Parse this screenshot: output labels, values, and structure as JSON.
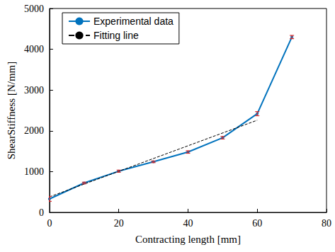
{
  "chart_data": {
    "type": "line",
    "x_label": "Contracting length [mm]",
    "y_label": "ShearStiffness [N/mm]",
    "xlim": [
      0,
      80
    ],
    "xticks": [
      0,
      20,
      40,
      60,
      80
    ],
    "ylim": [
      0,
      5000
    ],
    "yticks": [
      0,
      1000,
      2000,
      3000,
      4000,
      5000
    ],
    "grid": false,
    "legend": "upper left",
    "series": [
      {
        "name": "Experimental data",
        "color": "#0072bd",
        "marker": "circle",
        "line_style": "solid",
        "x": [
          0,
          10,
          20,
          30,
          40,
          50,
          60,
          70
        ],
        "values": [
          330,
          720,
          1010,
          1240,
          1480,
          1830,
          2420,
          4300
        ],
        "errors": [
          60,
          20,
          25,
          20,
          30,
          30,
          50,
          40
        ]
      },
      {
        "name": "Fitting line",
        "color": "#000000",
        "marker": "none",
        "line_style": "dashed",
        "x": [
          0,
          60
        ],
        "values": [
          380,
          2260
        ]
      }
    ]
  }
}
